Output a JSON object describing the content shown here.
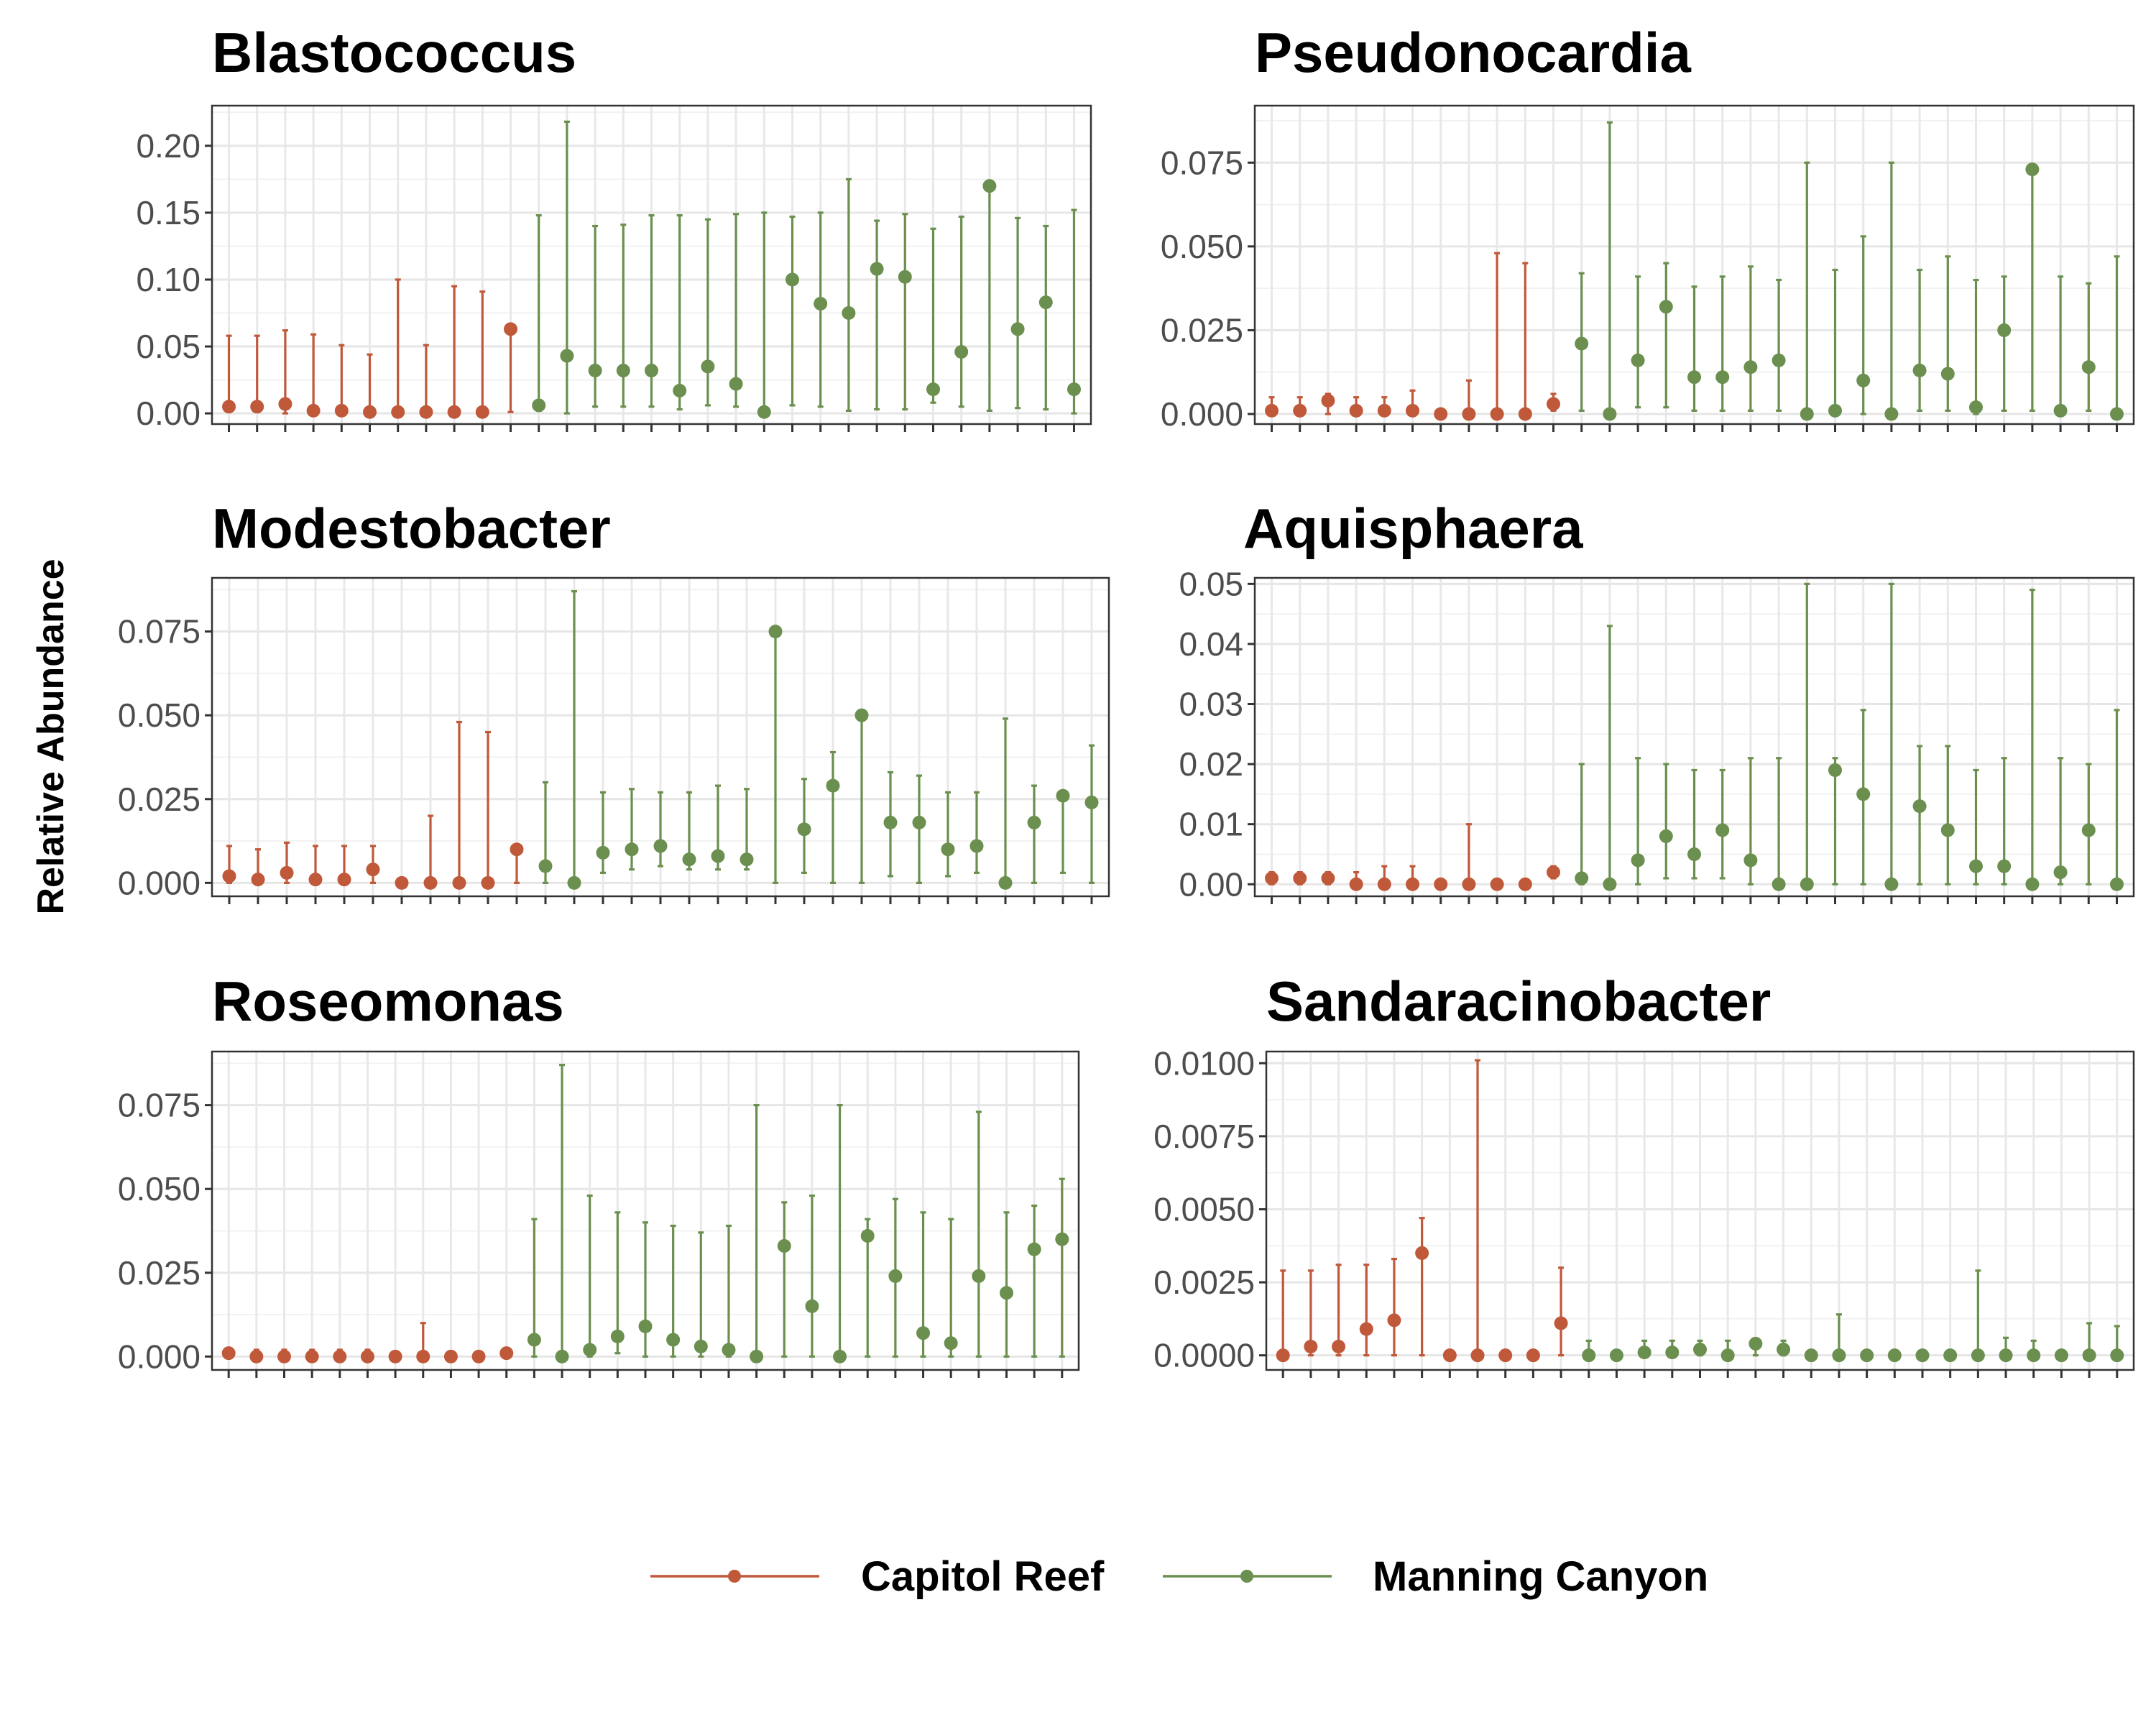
{
  "ylabel": "Relative Abundance",
  "legend": [
    {
      "label": "Capitol Reef",
      "color": "#C0583A"
    },
    {
      "label": "Manning Canyon",
      "color": "#6A8F4E"
    }
  ],
  "chart_data": [
    {
      "type": "scatter",
      "title": "Blastococcus",
      "xlabel": "",
      "ylabel": "Relative Abundance",
      "ylim": [
        -0.008,
        0.23
      ],
      "yticks": [
        0,
        0.05,
        0.1,
        0.15,
        0.2
      ],
      "ytick_labels": [
        "0.00",
        "0.05",
        "0.10",
        "0.15",
        "0.20"
      ],
      "groups": [
        "Capitol Reef",
        "Capitol Reef",
        "Capitol Reef",
        "Capitol Reef",
        "Capitol Reef",
        "Capitol Reef",
        "Capitol Reef",
        "Capitol Reef",
        "Capitol Reef",
        "Capitol Reef",
        "Capitol Reef",
        "Manning Canyon",
        "Manning Canyon",
        "Manning Canyon",
        "Manning Canyon",
        "Manning Canyon",
        "Manning Canyon",
        "Manning Canyon",
        "Manning Canyon",
        "Manning Canyon",
        "Manning Canyon",
        "Manning Canyon",
        "Manning Canyon",
        "Manning Canyon",
        "Manning Canyon",
        "Manning Canyon",
        "Manning Canyon",
        "Manning Canyon",
        "Manning Canyon",
        "Manning Canyon",
        "Manning Canyon"
      ],
      "values": [
        0.005,
        0.005,
        0.007,
        0.002,
        0.002,
        0.001,
        0.001,
        0.001,
        0.001,
        0.001,
        0.063,
        0.006,
        0.043,
        0.032,
        0.032,
        0.032,
        0.017,
        0.035,
        0.022,
        0.001,
        0.1,
        0.082,
        0.075,
        0.108,
        0.102,
        0.018,
        0.046,
        0.17,
        0.063,
        0.083,
        0.018
      ],
      "lower": [
        0.002,
        0.001,
        0.0,
        0.0,
        0.0,
        0.0,
        0.0,
        0.0,
        0.0,
        0.0,
        0.001,
        0.002,
        0.0,
        0.005,
        0.005,
        0.005,
        0.003,
        0.006,
        0.005,
        0.0,
        0.006,
        0.005,
        0.002,
        0.003,
        0.003,
        0.008,
        0.005,
        0.002,
        0.004,
        0.003,
        0.0
      ],
      "upper": [
        0.058,
        0.058,
        0.062,
        0.059,
        0.051,
        0.044,
        0.1,
        0.051,
        0.095,
        0.091,
        0.065,
        0.148,
        0.218,
        0.14,
        0.141,
        0.148,
        0.148,
        0.145,
        0.149,
        0.15,
        0.147,
        0.15,
        0.175,
        0.144,
        0.149,
        0.138,
        0.147,
        0.172,
        0.146,
        0.14,
        0.152
      ]
    },
    {
      "type": "scatter",
      "title": "Pseudonocardia",
      "xlabel": "",
      "ylabel": "",
      "ylim": [
        -0.003,
        0.092
      ],
      "yticks": [
        0,
        0.025,
        0.05,
        0.075
      ],
      "ytick_labels": [
        "0.000",
        "0.025",
        "0.050",
        "0.075"
      ],
      "groups": [
        "Capitol Reef",
        "Capitol Reef",
        "Capitol Reef",
        "Capitol Reef",
        "Capitol Reef",
        "Capitol Reef",
        "Capitol Reef",
        "Capitol Reef",
        "Capitol Reef",
        "Capitol Reef",
        "Capitol Reef",
        "Manning Canyon",
        "Manning Canyon",
        "Manning Canyon",
        "Manning Canyon",
        "Manning Canyon",
        "Manning Canyon",
        "Manning Canyon",
        "Manning Canyon",
        "Manning Canyon",
        "Manning Canyon",
        "Manning Canyon",
        "Manning Canyon",
        "Manning Canyon",
        "Manning Canyon",
        "Manning Canyon",
        "Manning Canyon",
        "Manning Canyon",
        "Manning Canyon",
        "Manning Canyon",
        "Manning Canyon"
      ],
      "values": [
        0.001,
        0.001,
        0.004,
        0.001,
        0.001,
        0.001,
        0.0,
        0.0,
        0.0,
        0.0,
        0.003,
        0.021,
        0.0,
        0.016,
        0.032,
        0.011,
        0.011,
        0.014,
        0.016,
        0.0,
        0.001,
        0.01,
        0.0,
        0.013,
        0.012,
        0.002,
        0.025,
        0.073,
        0.001,
        0.014,
        0.0
      ],
      "lower": [
        0.0,
        0.0,
        0.0,
        0.0,
        0.0,
        0.0,
        0.0,
        0.0,
        0.0,
        0.0,
        0.001,
        0.001,
        0.0,
        0.002,
        0.002,
        0.001,
        0.001,
        0.001,
        0.001,
        0.0,
        0.0,
        0.0,
        0.0,
        0.001,
        0.001,
        0.0,
        0.001,
        0.001,
        0.0,
        0.001,
        0.0
      ],
      "upper": [
        0.005,
        0.005,
        0.006,
        0.005,
        0.005,
        0.007,
        0.001,
        0.01,
        0.048,
        0.045,
        0.006,
        0.042,
        0.087,
        0.041,
        0.045,
        0.038,
        0.041,
        0.044,
        0.04,
        0.075,
        0.043,
        0.053,
        0.075,
        0.043,
        0.047,
        0.04,
        0.041,
        0.074,
        0.041,
        0.039,
        0.047
      ]
    },
    {
      "type": "scatter",
      "title": "Modestobacter",
      "xlabel": "",
      "ylabel": "",
      "ylim": [
        -0.004,
        0.091
      ],
      "yticks": [
        0,
        0.025,
        0.05,
        0.075
      ],
      "ytick_labels": [
        "0.000",
        "0.025",
        "0.050",
        "0.075"
      ],
      "groups": [
        "Capitol Reef",
        "Capitol Reef",
        "Capitol Reef",
        "Capitol Reef",
        "Capitol Reef",
        "Capitol Reef",
        "Capitol Reef",
        "Capitol Reef",
        "Capitol Reef",
        "Capitol Reef",
        "Capitol Reef",
        "Manning Canyon",
        "Manning Canyon",
        "Manning Canyon",
        "Manning Canyon",
        "Manning Canyon",
        "Manning Canyon",
        "Manning Canyon",
        "Manning Canyon",
        "Manning Canyon",
        "Manning Canyon",
        "Manning Canyon",
        "Manning Canyon",
        "Manning Canyon",
        "Manning Canyon",
        "Manning Canyon",
        "Manning Canyon",
        "Manning Canyon",
        "Manning Canyon",
        "Manning Canyon",
        "Manning Canyon"
      ],
      "values": [
        0.002,
        0.001,
        0.003,
        0.001,
        0.001,
        0.004,
        0.0,
        0.0,
        0.0,
        0.0,
        0.01,
        0.005,
        0.0,
        0.009,
        0.01,
        0.011,
        0.007,
        0.008,
        0.007,
        0.075,
        0.016,
        0.029,
        0.05,
        0.018,
        0.018,
        0.01,
        0.011,
        0.0,
        0.018,
        0.026,
        0.024
      ],
      "lower": [
        0.0,
        0.0,
        0.0,
        0.0,
        0.0,
        0.0,
        0.0,
        0.0,
        0.0,
        0.0,
        0.0,
        0.0,
        0.0,
        0.003,
        0.004,
        0.005,
        0.004,
        0.004,
        0.004,
        0.0,
        0.003,
        0.0,
        0.0,
        0.002,
        0.0,
        0.002,
        0.003,
        0.0,
        0.0,
        0.003,
        0.0
      ],
      "upper": [
        0.011,
        0.01,
        0.012,
        0.011,
        0.011,
        0.011,
        0.001,
        0.02,
        0.048,
        0.045,
        0.011,
        0.03,
        0.087,
        0.027,
        0.028,
        0.027,
        0.027,
        0.029,
        0.028,
        0.075,
        0.031,
        0.039,
        0.05,
        0.033,
        0.032,
        0.027,
        0.027,
        0.049,
        0.029,
        0.027,
        0.041
      ]
    },
    {
      "type": "scatter",
      "title": "Aquisphaera",
      "xlabel": "",
      "ylabel": "",
      "ylim": [
        -0.002,
        0.051
      ],
      "yticks": [
        0,
        0.01,
        0.02,
        0.03,
        0.04,
        0.05
      ],
      "ytick_labels": [
        "0.00",
        "0.01",
        "0.02",
        "0.03",
        "0.04",
        "0.05"
      ],
      "groups": [
        "Capitol Reef",
        "Capitol Reef",
        "Capitol Reef",
        "Capitol Reef",
        "Capitol Reef",
        "Capitol Reef",
        "Capitol Reef",
        "Capitol Reef",
        "Capitol Reef",
        "Capitol Reef",
        "Capitol Reef",
        "Manning Canyon",
        "Manning Canyon",
        "Manning Canyon",
        "Manning Canyon",
        "Manning Canyon",
        "Manning Canyon",
        "Manning Canyon",
        "Manning Canyon",
        "Manning Canyon",
        "Manning Canyon",
        "Manning Canyon",
        "Manning Canyon",
        "Manning Canyon",
        "Manning Canyon",
        "Manning Canyon",
        "Manning Canyon",
        "Manning Canyon",
        "Manning Canyon",
        "Manning Canyon",
        "Manning Canyon"
      ],
      "values": [
        0.001,
        0.001,
        0.001,
        0.0,
        0.0,
        0.0,
        0.0,
        0.0,
        0.0,
        0.0,
        0.002,
        0.001,
        0.0,
        0.004,
        0.008,
        0.005,
        0.009,
        0.004,
        0.0,
        0.0,
        0.019,
        0.015,
        0.0,
        0.013,
        0.009,
        0.003,
        0.003,
        0.0,
        0.002,
        0.009,
        0.0
      ],
      "lower": [
        0.0,
        0.0,
        0.0,
        0.0,
        0.0,
        0.0,
        0.0,
        0.0,
        0.0,
        0.0,
        0.001,
        0.0,
        0.0,
        0.0,
        0.001,
        0.001,
        0.001,
        0.0,
        0.0,
        0.0,
        0.0,
        0.0,
        0.0,
        0.0,
        0.0,
        0.0,
        0.0,
        0.0,
        0.0,
        0.0,
        0.0
      ],
      "upper": [
        0.002,
        0.002,
        0.002,
        0.002,
        0.003,
        0.003,
        0.0005,
        0.01,
        0.0005,
        0.0005,
        0.003,
        0.02,
        0.043,
        0.021,
        0.02,
        0.019,
        0.019,
        0.021,
        0.021,
        0.05,
        0.021,
        0.029,
        0.05,
        0.023,
        0.023,
        0.019,
        0.021,
        0.049,
        0.021,
        0.02,
        0.029
      ]
    },
    {
      "type": "scatter",
      "title": "Roseomonas",
      "xlabel": "",
      "ylabel": "",
      "ylim": [
        -0.004,
        0.091
      ],
      "yticks": [
        0,
        0.025,
        0.05,
        0.075
      ],
      "ytick_labels": [
        "0.000",
        "0.025",
        "0.050",
        "0.075"
      ],
      "groups": [
        "Capitol Reef",
        "Capitol Reef",
        "Capitol Reef",
        "Capitol Reef",
        "Capitol Reef",
        "Capitol Reef",
        "Capitol Reef",
        "Capitol Reef",
        "Capitol Reef",
        "Capitol Reef",
        "Capitol Reef",
        "Manning Canyon",
        "Manning Canyon",
        "Manning Canyon",
        "Manning Canyon",
        "Manning Canyon",
        "Manning Canyon",
        "Manning Canyon",
        "Manning Canyon",
        "Manning Canyon",
        "Manning Canyon",
        "Manning Canyon",
        "Manning Canyon",
        "Manning Canyon",
        "Manning Canyon",
        "Manning Canyon",
        "Manning Canyon",
        "Manning Canyon",
        "Manning Canyon",
        "Manning Canyon",
        "Manning Canyon"
      ],
      "values": [
        0.001,
        0.0,
        0.0,
        0.0,
        0.0,
        0.0,
        0.0,
        0.0,
        0.0,
        0.0,
        0.001,
        0.005,
        0.0,
        0.002,
        0.006,
        0.009,
        0.005,
        0.003,
        0.002,
        0.0,
        0.033,
        0.015,
        0.0,
        0.036,
        0.024,
        0.007,
        0.004,
        0.024,
        0.019,
        0.032,
        0.035
      ],
      "lower": [
        0.0,
        0.0,
        0.0,
        0.0,
        0.0,
        0.0,
        0.0,
        0.0,
        0.0,
        0.0,
        0.0,
        0.0,
        0.0,
        0.0,
        0.001,
        0.0,
        0.0,
        0.0,
        0.0,
        0.0,
        0.0,
        0.0,
        0.0,
        0.0,
        0.0,
        0.0,
        0.0,
        0.0,
        0.0,
        0.0,
        0.0
      ],
      "upper": [
        0.002,
        0.002,
        0.002,
        0.002,
        0.002,
        0.002,
        0.001,
        0.01,
        0.001,
        0.001,
        0.002,
        0.041,
        0.087,
        0.048,
        0.043,
        0.04,
        0.039,
        0.037,
        0.039,
        0.075,
        0.046,
        0.048,
        0.075,
        0.041,
        0.047,
        0.043,
        0.041,
        0.073,
        0.043,
        0.045,
        0.053
      ]
    },
    {
      "type": "scatter",
      "title": "Sandaracinobacter",
      "xlabel": "",
      "ylabel": "",
      "ylim": [
        -0.0005,
        0.0104
      ],
      "yticks": [
        0,
        0.0025,
        0.005,
        0.0075,
        0.01
      ],
      "ytick_labels": [
        "0.0000",
        "0.0025",
        "0.0050",
        "0.0075",
        "0.0100"
      ],
      "groups": [
        "Capitol Reef",
        "Capitol Reef",
        "Capitol Reef",
        "Capitol Reef",
        "Capitol Reef",
        "Capitol Reef",
        "Capitol Reef",
        "Capitol Reef",
        "Capitol Reef",
        "Capitol Reef",
        "Capitol Reef",
        "Manning Canyon",
        "Manning Canyon",
        "Manning Canyon",
        "Manning Canyon",
        "Manning Canyon",
        "Manning Canyon",
        "Manning Canyon",
        "Manning Canyon",
        "Manning Canyon",
        "Manning Canyon",
        "Manning Canyon",
        "Manning Canyon",
        "Manning Canyon",
        "Manning Canyon",
        "Manning Canyon",
        "Manning Canyon",
        "Manning Canyon",
        "Manning Canyon",
        "Manning Canyon",
        "Manning Canyon"
      ],
      "values": [
        0.0,
        0.0003,
        0.0003,
        0.0009,
        0.0012,
        0.0035,
        0.0,
        0.0,
        0.0,
        0.0,
        0.0011,
        0.0,
        0.0,
        0.0001,
        0.0001,
        0.0002,
        0.0,
        0.0004,
        0.0002,
        0.0,
        0.0,
        0.0,
        0.0,
        0.0,
        0.0,
        0.0,
        0.0,
        0.0,
        0.0,
        0.0,
        0.0
      ],
      "lower": [
        0.0,
        0.0,
        0.0,
        0.0,
        0.0,
        0.0,
        0.0,
        0.0,
        0.0,
        0.0,
        0.0,
        0.0,
        0.0,
        0.0,
        0.0,
        0.0,
        0.0,
        0.0,
        0.0,
        0.0,
        0.0,
        0.0,
        0.0,
        0.0,
        0.0,
        0.0,
        0.0,
        0.0,
        0.0,
        0.0,
        0.0
      ],
      "upper": [
        0.0029,
        0.0029,
        0.0031,
        0.0031,
        0.0033,
        0.0047,
        0.0001,
        0.0101,
        0.0001,
        0.0001,
        0.003,
        0.0005,
        0.0001,
        0.0005,
        0.0005,
        0.0005,
        0.0005,
        0.0005,
        0.0005,
        0.0001,
        0.0014,
        0.0001,
        0.0001,
        0.0001,
        0.0001,
        0.0029,
        0.0006,
        0.0005,
        0.0001,
        0.0011,
        0.001
      ]
    }
  ]
}
